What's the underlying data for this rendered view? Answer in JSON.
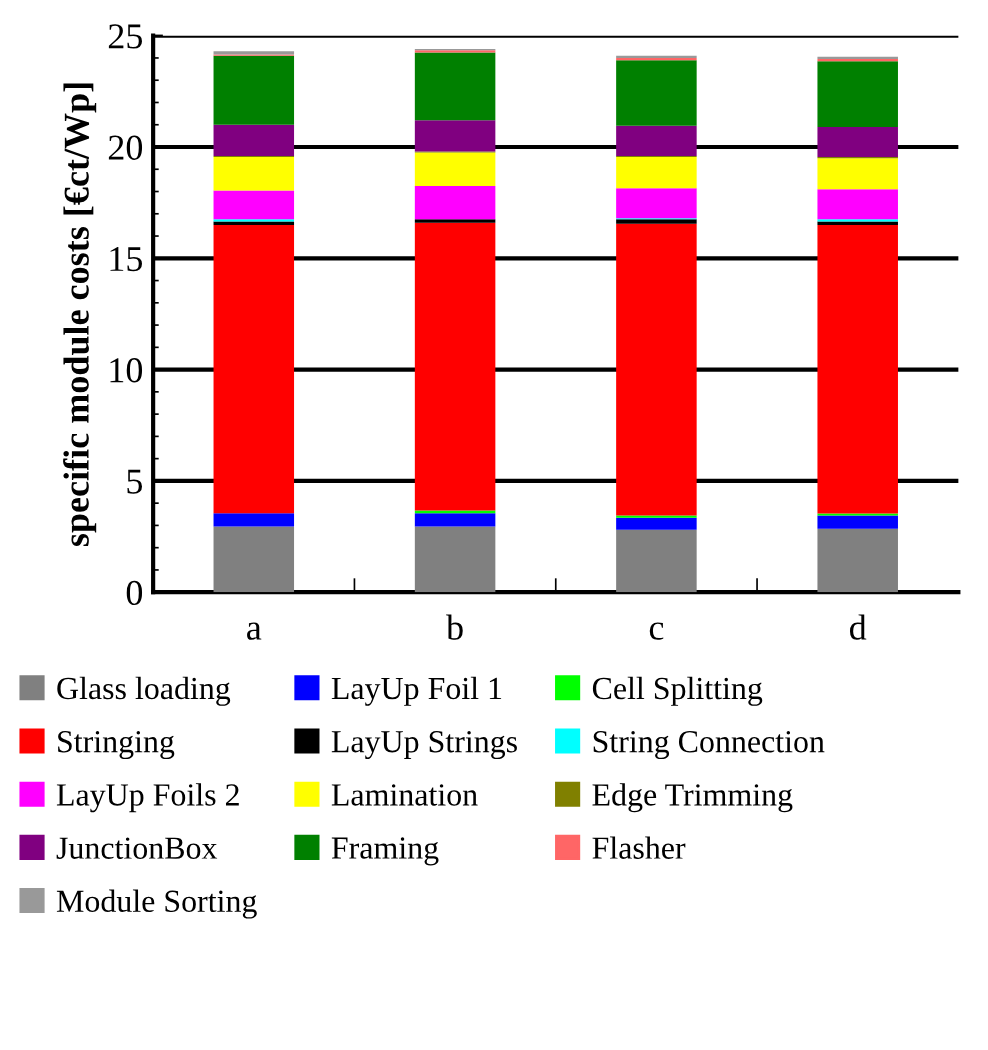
{
  "chart_data": {
    "type": "bar",
    "stacked": true,
    "ylabel": "specific module costs [€ct/Wp]",
    "categories": [
      "a",
      "b",
      "c",
      "d"
    ],
    "ylim": [
      0,
      25
    ],
    "yticks": [
      0,
      5,
      10,
      15,
      20,
      25
    ],
    "grid": "y",
    "legend": "bottom",
    "series": [
      {
        "name": "Glass loading",
        "color": "#808080",
        "values": [
          2.95,
          2.95,
          2.8,
          2.85
        ]
      },
      {
        "name": "LayUp Foil 1",
        "color": "#0000ff",
        "values": [
          0.6,
          0.6,
          0.55,
          0.6
        ]
      },
      {
        "name": "Cell Splitting",
        "color": "#00ff00",
        "values": [
          0,
          0.12,
          0.1,
          0.08
        ]
      },
      {
        "name": "Stringing",
        "color": "#ff0000",
        "values": [
          12.95,
          12.93,
          13.1,
          12.97
        ]
      },
      {
        "name": "LayUp Strings",
        "color": "#000000",
        "values": [
          0.15,
          0.15,
          0.2,
          0.15
        ]
      },
      {
        "name": "String Connection",
        "color": "#00ffff",
        "values": [
          0.1,
          0,
          0.05,
          0.1
        ]
      },
      {
        "name": "LayUp Foils 2",
        "color": "#ff00ff",
        "values": [
          1.3,
          1.5,
          1.35,
          1.35
        ]
      },
      {
        "name": "Lamination",
        "color": "#ffff00",
        "values": [
          1.5,
          1.5,
          1.4,
          1.4
        ]
      },
      {
        "name": "Edge Trimming",
        "color": "#808000",
        "values": [
          0.05,
          0.05,
          0.05,
          0.05
        ]
      },
      {
        "name": "JunctionBox",
        "color": "#800080",
        "values": [
          1.4,
          1.4,
          1.35,
          1.35
        ]
      },
      {
        "name": "Framing",
        "color": "#008000",
        "values": [
          3.1,
          3.05,
          2.95,
          2.95
        ]
      },
      {
        "name": "Flasher",
        "color": "#ff6666",
        "values": [
          0.05,
          0.1,
          0.1,
          0.1
        ]
      },
      {
        "name": "Module Sorting",
        "color": "#999999",
        "values": [
          0.15,
          0.05,
          0.1,
          0.1
        ]
      }
    ]
  }
}
